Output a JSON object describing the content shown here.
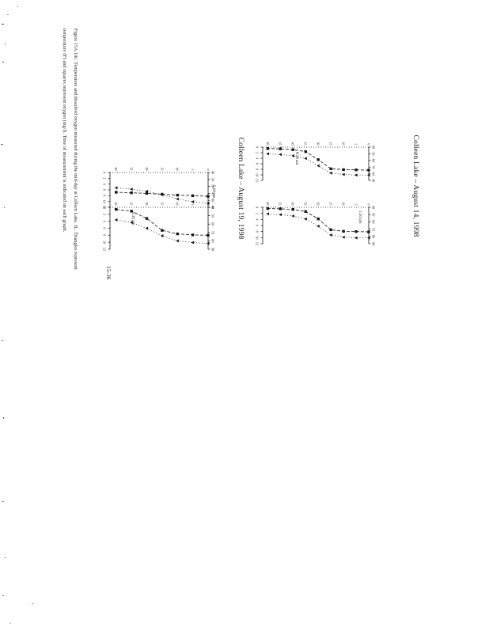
{
  "page": {
    "titles": {
      "aug14": "Colleen Lake – August 14, 1998",
      "aug19": "Colleen Lake – August 19, 1998"
    },
    "caption_line1": "Figure 15A.10c. Temperature and dissolved oxygen measured during the mid-day at Colleen Lake, IL. Triangles represent",
    "caption_line2": "temperature (F) and squares represent oxygen (mg/l). Time of measurement is indicated on each graph.",
    "page_number": "15-36"
  },
  "legend_meaning": {
    "triangle_marker": "temperature (F)",
    "square_marker": "oxygen (mg/l)"
  },
  "chart_data": [
    {
      "type": "line",
      "variant": "depth-profile",
      "group_title": "Colleen Lake – August 14, 1998",
      "time_label": "8:30 am",
      "ylabel": "Depth (ft)",
      "depth_ticks": [
        0,
        5,
        10,
        15,
        20,
        25,
        30,
        35,
        40
      ],
      "depth_max": 42,
      "temp_axis": {
        "min": 40,
        "max": 90,
        "ticks": [
          40,
          50,
          60,
          70,
          80,
          90
        ]
      },
      "do_axis": {
        "min": 0,
        "max": 12,
        "ticks": [
          0,
          2,
          4,
          6,
          8,
          10,
          12
        ]
      },
      "depth": [
        0,
        5,
        10,
        15,
        20,
        25,
        30,
        35,
        40
      ],
      "series": [
        {
          "name": "temperature_F",
          "marker": "triangle",
          "values": [
            82,
            82,
            81,
            79,
            68,
            57,
            53,
            51,
            50
          ]
        },
        {
          "name": "oxygen_mgl",
          "marker": "square",
          "values": [
            8.3,
            8.2,
            8.1,
            7.8,
            4.5,
            1.6,
            0.9,
            0.6,
            0.5
          ]
        }
      ]
    },
    {
      "type": "line",
      "variant": "depth-profile",
      "group_title": "Colleen Lake – August 14, 1998",
      "time_label": "1:30 pm",
      "ylabel": "Depth (ft)",
      "depth_ticks": [
        0,
        5,
        10,
        15,
        20,
        25,
        30,
        35,
        40
      ],
      "depth_max": 42,
      "temp_axis": {
        "min": 40,
        "max": 90,
        "ticks": [
          40,
          50,
          60,
          70,
          80,
          90
        ]
      },
      "do_axis": {
        "min": 0,
        "max": 12,
        "ticks": [
          0,
          2,
          4,
          6,
          8,
          10,
          12
        ]
      },
      "depth": [
        0,
        5,
        10,
        15,
        20,
        25,
        30,
        35,
        40
      ],
      "series": [
        {
          "name": "temperature_F",
          "marker": "triangle",
          "values": [
            82,
            82,
            81,
            78,
            66,
            56,
            52,
            50,
            49
          ]
        },
        {
          "name": "oxygen_mgl",
          "marker": "square",
          "values": [
            8.1,
            8.0,
            7.9,
            7.4,
            3.8,
            1.4,
            0.7,
            0.5,
            0.4
          ]
        }
      ]
    },
    {
      "type": "line",
      "variant": "depth-profile",
      "group_title": "Colleen Lake – August 19, 1998",
      "time_label": "5:00 pm",
      "ylabel": "Depth (ft)",
      "depth_ticks": [
        0,
        5,
        10,
        15,
        20,
        25,
        30
      ],
      "depth_max": 32,
      "temp_axis": {
        "min": 40,
        "max": 90,
        "ticks": [
          40,
          50,
          60,
          70,
          80,
          90
        ]
      },
      "do_axis": {
        "min": 0,
        "max": 12,
        "ticks": [
          0,
          2,
          4,
          6,
          8,
          10,
          12
        ]
      },
      "depth": [
        0,
        5,
        10,
        15,
        20,
        25,
        30
      ],
      "series": [
        {
          "name": "temperature_F",
          "marker": "triangle",
          "values": [
            84,
            82,
            78,
            72,
            67,
            64,
            62
          ]
        },
        {
          "name": "oxygen_mgl",
          "marker": "square",
          "values": [
            8.2,
            8.0,
            7.8,
            7.5,
            7.2,
            7.0,
            6.8
          ]
        }
      ]
    },
    {
      "type": "line",
      "variant": "depth-profile",
      "group_title": "Colleen Lake – August 19, 1998",
      "time_label": "5:30 pm",
      "ylabel": "Depth (ft)",
      "depth_ticks": [
        0,
        5,
        10,
        15,
        20,
        25,
        30
      ],
      "depth_max": 32,
      "temp_axis": {
        "min": 40,
        "max": 90,
        "ticks": [
          40,
          50,
          60,
          70,
          80,
          90
        ]
      },
      "do_axis": {
        "min": 0,
        "max": 12,
        "ticks": [
          0,
          2,
          4,
          6,
          8,
          10,
          12
        ]
      },
      "depth": [
        0,
        5,
        10,
        15,
        20,
        25,
        30
      ],
      "series": [
        {
          "name": "temperature_F",
          "marker": "triangle",
          "values": [
            83,
            82,
            80,
            74,
            65,
            58,
            55
          ]
        },
        {
          "name": "oxygen_mgl",
          "marker": "square",
          "values": [
            8.0,
            7.9,
            7.6,
            6.6,
            3.2,
            1.1,
            0.6
          ]
        }
      ]
    }
  ]
}
